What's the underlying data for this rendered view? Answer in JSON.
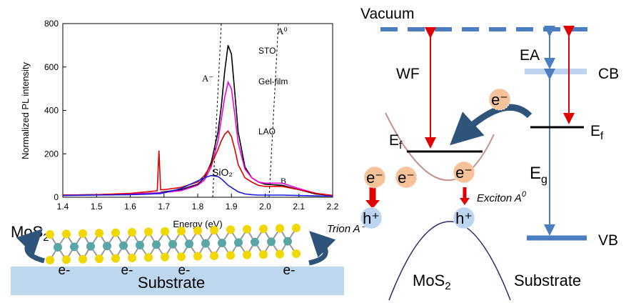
{
  "chart_data": {
    "type": "line",
    "x_label": "Energy (eV)",
    "y_label": "Normalized PL intensity",
    "x": [
      1.4,
      1.5,
      1.6,
      1.65,
      1.68,
      1.685,
      1.69,
      1.7,
      1.75,
      1.8,
      1.82,
      1.84,
      1.86,
      1.87,
      1.88,
      1.89,
      1.9,
      1.91,
      1.92,
      1.94,
      1.96,
      1.98,
      2.0,
      2.05,
      2.1,
      2.15,
      2.2
    ],
    "series": [
      {
        "name": "STO",
        "color": "#000000",
        "values": [
          10,
          12,
          15,
          18,
          20,
          20,
          22,
          25,
          35,
          60,
          90,
          160,
          300,
          420,
          580,
          700,
          660,
          480,
          300,
          140,
          90,
          70,
          60,
          55,
          35,
          15,
          8
        ]
      },
      {
        "name": "Gel-film",
        "color": "#e800e8",
        "values": [
          10,
          12,
          15,
          17,
          19,
          19,
          20,
          22,
          30,
          55,
          80,
          140,
          260,
          360,
          460,
          530,
          500,
          380,
          250,
          130,
          90,
          70,
          65,
          65,
          40,
          18,
          8
        ]
      },
      {
        "name": "LAO",
        "color": "#e00000",
        "values": [
          10,
          12,
          18,
          25,
          30,
          215,
          35,
          35,
          45,
          70,
          100,
          150,
          220,
          260,
          290,
          305,
          280,
          220,
          150,
          90,
          70,
          55,
          50,
          50,
          35,
          18,
          8
        ]
      },
      {
        "name": "SiO₂",
        "color": "#1a1ae0",
        "values": [
          8,
          10,
          12,
          14,
          16,
          16,
          17,
          20,
          40,
          75,
          90,
          100,
          95,
          85,
          70,
          55,
          45,
          35,
          25,
          15,
          12,
          10,
          10,
          10,
          8,
          6,
          5
        ]
      }
    ],
    "xlim": [
      1.4,
      2.2
    ],
    "xticks": [
      1.4,
      1.5,
      1.6,
      1.7,
      1.8,
      1.9,
      {
        "value": 2,
        "label": "2.0"
      },
      2.1,
      2.2
    ],
    "ylim": [
      0,
      800
    ],
    "yticks": [
      0,
      200,
      400,
      600,
      800
    ],
    "peak_labels": {
      "a0": "A⁰",
      "a_minus": "A⁻",
      "b": "B"
    }
  },
  "band_diagram": {
    "vacuum": "Vacuum",
    "wf": "WF",
    "ea": "EA",
    "cb": "CB",
    "vb": "VB",
    "ef_left": {
      "base": "E",
      "sub": "f"
    },
    "ef_right": {
      "base": "E",
      "sub": "f"
    },
    "eg": {
      "base": "E",
      "sub": "g"
    },
    "mos2": {
      "base": "MoS",
      "sub": "2"
    },
    "substrate": "Substrate",
    "exciton": {
      "base": "Exciton A",
      "sup": "0"
    },
    "trion": "Trion A⁻",
    "electrons": [
      "e⁻",
      "e⁻",
      "e⁻",
      "e⁻"
    ],
    "holes": [
      "h⁺",
      "h⁺"
    ]
  },
  "lattice": {
    "mos2": {
      "base": "MoS",
      "sub": "2"
    },
    "substrate": "Substrate",
    "electrons": [
      "e-",
      "e-",
      "e-",
      "e-"
    ]
  }
}
